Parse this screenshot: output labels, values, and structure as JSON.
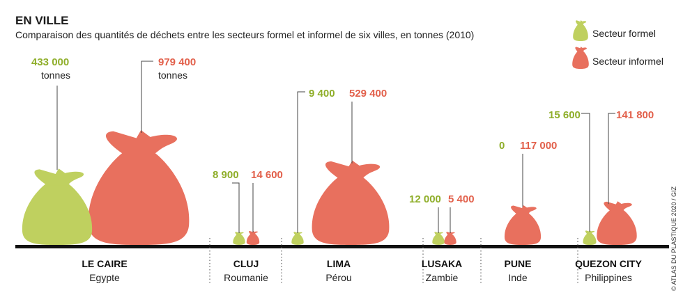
{
  "title": "EN VILLE",
  "subtitle": "Comparaison des quantités de déchets entre les secteurs formel et informel de six villes, en tonnes (2010)",
  "credit": "© ATLAS DU PLASTIQUE 2020 / GIZ",
  "unit_label": "tonnes",
  "colors": {
    "formal": "#bfd05f",
    "informal": "#e8705e",
    "formal_text": "#8fae2a",
    "informal_text": "#e2604b"
  },
  "legend": [
    {
      "series": "formal",
      "label": "Secteur formel"
    },
    {
      "series": "informal",
      "label": "Secteur informel"
    }
  ],
  "chart_data": {
    "type": "bar",
    "title": "EN VILLE",
    "subtitle": "Comparaison des quantités de déchets entre les secteurs formel et informel de six villes, en tonnes (2010)",
    "categories": [
      "LE CAIRE",
      "CLUJ",
      "LIMA",
      "LUSAKA",
      "PUNE",
      "QUEZON CITY"
    ],
    "countries": [
      "Egypte",
      "Roumanie",
      "Pérou",
      "Zambie",
      "Inde",
      "Philippines"
    ],
    "series": [
      {
        "name": "Secteur formel",
        "values": [
          433000,
          8900,
          9400,
          12000,
          0,
          15600
        ],
        "labels": [
          "433 000",
          "8 900",
          "9 400",
          "12 000",
          "0",
          "15 600"
        ]
      },
      {
        "name": "Secteur informel",
        "values": [
          979400,
          14600,
          529400,
          5400,
          117000,
          141800
        ],
        "labels": [
          "979 400",
          "14 600",
          "529 400",
          "5 400",
          "117 000",
          "141 800"
        ]
      }
    ],
    "legend_position": "top-right"
  }
}
